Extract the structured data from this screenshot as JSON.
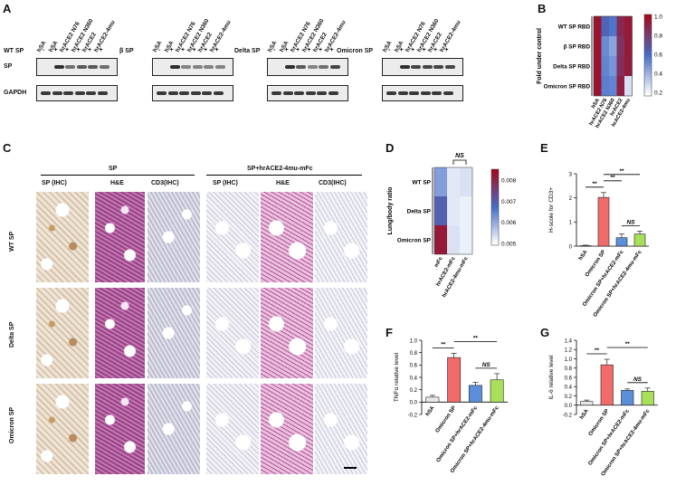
{
  "panel_labels": {
    "a": "A",
    "b": "B",
    "c": "C",
    "d": "D",
    "e": "E",
    "f": "F",
    "g": "G"
  },
  "panelA": {
    "row_sp": "SP",
    "row_gapdh": "GAPDH",
    "lanes": [
      "hSA",
      "hSA",
      "hrACE2 N76",
      "hrACE2 N360",
      "hrACE2",
      "hrACE2-4mu"
    ],
    "signs": [
      "-",
      "+",
      "+",
      "+",
      "+",
      "+"
    ],
    "blots": [
      {
        "name": "WT SP"
      },
      {
        "name": "β SP"
      },
      {
        "name": "Delta SP"
      },
      {
        "name": "Omicron SP"
      }
    ],
    "sp_intensity": [
      [
        0,
        0.9,
        0.6,
        0.7,
        0.7,
        0.6
      ],
      [
        0,
        0.9,
        0.5,
        0.5,
        0.5,
        0.5
      ],
      [
        0,
        0.9,
        0.7,
        0.5,
        0.6,
        0.8
      ],
      [
        0,
        0.9,
        0.8,
        0.8,
        0.8,
        0.8
      ]
    ]
  },
  "panelB": {
    "ylabel": "Fold under control",
    "rows": [
      "WT SP RBD",
      "β SP RBD",
      "Delta SP RBD",
      "Omicron SP RBD"
    ],
    "cols": [
      "hSA",
      "hrACE2 N76",
      "hrACE2 N360",
      "hrACE2",
      "hrACE2-4mu"
    ],
    "values": [
      [
        1.0,
        0.62,
        0.55,
        0.9,
        0.98
      ],
      [
        1.0,
        0.48,
        0.4,
        0.85,
        0.97
      ],
      [
        1.0,
        0.5,
        0.45,
        0.88,
        0.96
      ],
      [
        1.0,
        0.52,
        0.5,
        0.95,
        0.2
      ]
    ],
    "scale_ticks": [
      "1.0",
      "0.8",
      "0.6",
      "0.4",
      "0.2"
    ]
  },
  "panelC": {
    "group1": "SP",
    "group2": "SP+hrACE2-4mu-mFc",
    "cols": [
      "SP (IHC)",
      "H&E",
      "CD3(IHC)",
      "SP (IHC)",
      "H&E",
      "CD3(IHC)"
    ],
    "rows": [
      "WT SP",
      "Delta SP",
      "Omicron SP"
    ]
  },
  "panelD": {
    "ylabel": "Lung/body ratio",
    "rows": [
      "WT SP",
      "Delta SP",
      "Omicron SP"
    ],
    "cols": [
      "mFc",
      "hrACE2-mFc",
      "hrACE2-4mu-mFc"
    ],
    "values": [
      [
        0.0062,
        0.0052,
        0.0053
      ],
      [
        0.0071,
        0.0052,
        0.0051
      ],
      [
        0.0085,
        0.0053,
        0.0051
      ]
    ],
    "scale_ticks": [
      "0.008",
      "0.007",
      "0.006",
      "0.005"
    ],
    "sig": "NS"
  },
  "chart_data": [
    {
      "panel": "E",
      "type": "bar",
      "categories": [
        "hSA",
        "Omicron SP",
        "Omicron SP+hrACE2-mFc",
        "Omicron SP+hrACE2-4mu-mFc"
      ],
      "values": [
        0.02,
        2.02,
        0.35,
        0.5
      ],
      "errors": [
        0.02,
        0.2,
        0.15,
        0.12
      ],
      "ylabel": "H-scole for CD3+",
      "ylim": [
        0,
        3
      ],
      "ticks": [
        "0",
        "1",
        "2",
        "3"
      ],
      "colors": [
        "#e8e8e8",
        "#f26b6b",
        "#5b8fd9",
        "#a8e05a"
      ],
      "sig": [
        {
          "a": 0,
          "b": 1,
          "label": "**"
        },
        {
          "a": 1,
          "b": 2,
          "label": "**"
        },
        {
          "a": 1,
          "b": 3,
          "label": "**"
        },
        {
          "a": 2,
          "b": 3,
          "label": "NS"
        }
      ]
    },
    {
      "panel": "F",
      "type": "bar",
      "categories": [
        "hSA",
        "Omicron SP",
        "Omicron SP+hrACE2-mFc",
        "Omicron SP+hrACE2-4mu-mFc"
      ],
      "values": [
        0.08,
        0.72,
        0.27,
        0.36
      ],
      "errors": [
        0.03,
        0.07,
        0.05,
        0.1
      ],
      "ylabel": "TNFα relative level",
      "ylim": [
        -0.2,
        1.0
      ],
      "ticks": [
        "-0.2",
        "0.0",
        "0.2",
        "0.4",
        "0.6",
        "0.8",
        "1.0"
      ],
      "colors": [
        "#e8e8e8",
        "#f26b6b",
        "#5b8fd9",
        "#a8e05a"
      ],
      "sig": [
        {
          "a": 0,
          "b": 1,
          "label": "**"
        },
        {
          "a": 1,
          "b": 3,
          "label": "**"
        },
        {
          "a": 2,
          "b": 3,
          "label": "NS"
        }
      ]
    },
    {
      "panel": "G",
      "type": "bar",
      "categories": [
        "hSA",
        "Omicron SP",
        "Omicron SP+hrACE2-mFc",
        "Omicron SP+hrACE2-4mu-mFc"
      ],
      "values": [
        0.08,
        0.87,
        0.32,
        0.3
      ],
      "errors": [
        0.03,
        0.12,
        0.03,
        0.07
      ],
      "ylabel": "IL-6 relative level",
      "ylim": [
        -0.2,
        1.4
      ],
      "ticks": [
        "-0.2",
        "0.0",
        "0.2",
        "0.4",
        "0.6",
        "0.8",
        "1.0",
        "1.2",
        "1.4"
      ],
      "colors": [
        "#e8e8e8",
        "#f26b6b",
        "#5b8fd9",
        "#a8e05a"
      ],
      "sig": [
        {
          "a": 0,
          "b": 1,
          "label": "**"
        },
        {
          "a": 1,
          "b": 3,
          "label": "**"
        },
        {
          "a": 2,
          "b": 3,
          "label": "NS"
        }
      ]
    }
  ]
}
